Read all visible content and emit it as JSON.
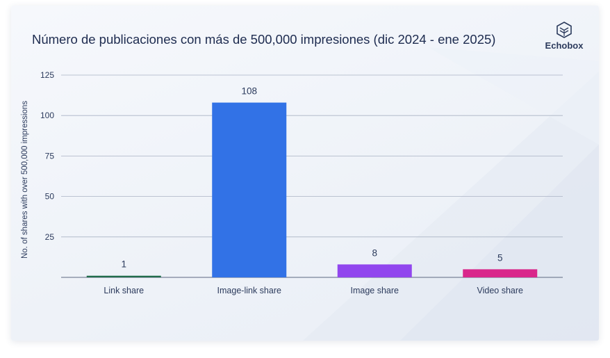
{
  "brand": {
    "name": "Echobox",
    "logo_icon": "echobox-cube-icon"
  },
  "chart_data": {
    "type": "bar",
    "title": "Número de publicaciones con más de 500,000 impresiones (dic 2024 - ene 2025)",
    "xlabel": "",
    "ylabel": "No. of shares with over 500,000 impressions",
    "categories": [
      "Link share",
      "Image-link share",
      "Image share",
      "Video share"
    ],
    "values": [
      1,
      108,
      8,
      5
    ],
    "data_labels": [
      "1",
      "108",
      "8",
      "5"
    ],
    "colors": [
      "#1f6b4a",
      "#3272e6",
      "#9146ee",
      "#d9278b"
    ],
    "ylim": [
      0,
      125
    ],
    "yticks": [
      25,
      50,
      75,
      100,
      125
    ],
    "grid": true,
    "legend": "none"
  }
}
